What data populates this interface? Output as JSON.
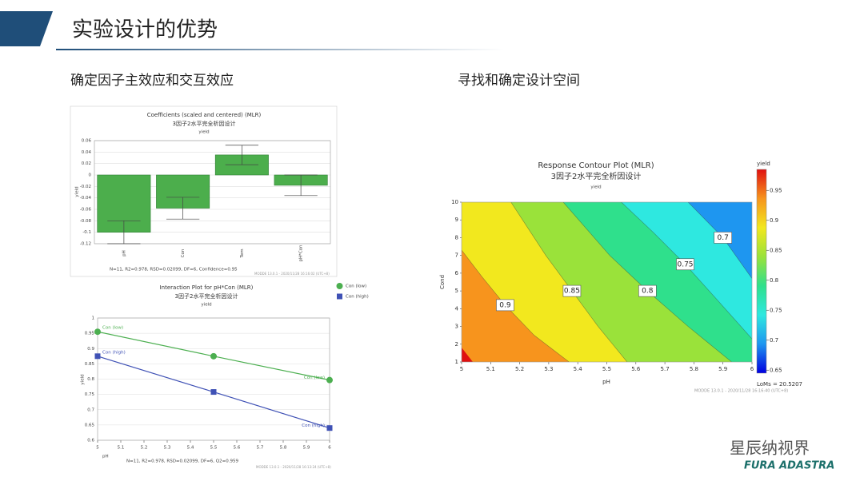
{
  "slide": {
    "title": "实验设计的优势",
    "left_heading": "确定因子主效应和交互效应",
    "right_heading": "寻找和确定设计空间",
    "brand": "星辰纳视界",
    "logo": "FURA ADASTRA"
  },
  "chart_data": [
    {
      "type": "bar",
      "title": "Coefficients (scaled and centered) (MLR)",
      "subtitle": "3因子2水平完全析因设计",
      "response": "yield",
      "y_label": "yield",
      "categories": [
        "pH",
        "Con",
        "Tem",
        "pH*Con"
      ],
      "values": [
        -0.1,
        -0.058,
        0.035,
        -0.018
      ],
      "errors": [
        0.02,
        0.019,
        0.017,
        0.018
      ],
      "color": "#4cae4c",
      "ylim": [
        -0.12,
        0.06
      ],
      "yticks": [
        -0.12,
        -0.1,
        -0.08,
        -0.06,
        -0.04,
        -0.02,
        0,
        0.02,
        0.04,
        0.06
      ],
      "grid": true,
      "footnote": "N=11, R2=0.978, RSD=0.02099, DF=6, Confidence=0.95",
      "software": "MODDE 13.0.1 - 2020/11/28 16:16:02 (UTC+8)"
    },
    {
      "type": "line",
      "title": "Interaction Plot for pH*Con (MLR)",
      "subtitle": "3因子2水平完全析因设计",
      "response": "yield",
      "x_label": "pH",
      "y_label": "yield",
      "x": [
        5,
        5.5,
        6
      ],
      "series": [
        {
          "name": "Con (low)",
          "color": "#4caf50",
          "marker": "circle",
          "values": [
            0.955,
            0.875,
            0.797
          ]
        },
        {
          "name": "Con (high)",
          "color": "#3f51b5",
          "marker": "square",
          "values": [
            0.875,
            0.758,
            0.64
          ]
        }
      ],
      "xlim": [
        5,
        6
      ],
      "xticks": [
        5,
        5.1,
        5.2,
        5.3,
        5.4,
        5.5,
        5.6,
        5.7,
        5.8,
        5.9,
        6
      ],
      "ylim": [
        0.6,
        1
      ],
      "yticks": [
        0.6,
        0.65,
        0.7,
        0.75,
        0.8,
        0.85,
        0.9,
        0.95,
        1
      ],
      "grid": true,
      "legend": "right",
      "footnote": "N=11, R2=0.978, RSD=0.02099, DF=6, Q2=0.959",
      "software": "MODDE 13.0.1 - 2020/11/28 16:13:24 (UTC+8)"
    },
    {
      "type": "contour",
      "title": "Response Contour Plot (MLR)",
      "subtitle": "3因子2水平完全析因设计",
      "response": "yield",
      "x_label": "pH",
      "y_label": "Cond",
      "xlim": [
        5,
        6
      ],
      "xticks": [
        5,
        5.1,
        5.2,
        5.3,
        5.4,
        5.5,
        5.6,
        5.7,
        5.8,
        5.9,
        6
      ],
      "ylim": [
        1,
        10
      ],
      "yticks": [
        1,
        2,
        3,
        4,
        5,
        6,
        7,
        8,
        9,
        10
      ],
      "base_color": "#f7941d",
      "levels": [
        {
          "value": 0.9,
          "color": "#f2e81e",
          "x": [
            5.37,
            5.25,
            5.15,
            5.07,
            5
          ],
          "y": [
            1,
            2.5,
            4.2,
            5.8,
            7.3
          ]
        },
        {
          "value": 0.85,
          "color": "#9ae23a",
          "x": [
            5.57,
            5.47,
            5.38,
            5.29,
            5.17
          ],
          "y": [
            1,
            3,
            5,
            7,
            10
          ]
        },
        {
          "value": 0.8,
          "color": "#2fe08c",
          "x": [
            5.93,
            5.78,
            5.64,
            5.51,
            5.35
          ],
          "y": [
            1,
            3,
            5,
            7,
            10
          ]
        },
        {
          "value": 0.75,
          "color": "#2ee8e0",
          "x": [
            6,
            5.88,
            5.77,
            5.66,
            5.55
          ],
          "y": [
            2.3,
            4.5,
            6.5,
            8.3,
            10
          ]
        },
        {
          "value": 0.7,
          "color": "#1e96f0",
          "x": [
            6,
            5.9,
            5.78
          ],
          "y": [
            5.7,
            8,
            10
          ]
        }
      ],
      "colorbar_title": "yield",
      "colorbar_lim": [
        0.645,
        0.985
      ],
      "colorbar_ticks": [
        0.65,
        0.7,
        0.75,
        0.8,
        0.85,
        0.9,
        0.95
      ],
      "colorscale": [
        "#0000e0",
        "#1e96f0",
        "#2ee8e0",
        "#2fe08c",
        "#9ae23a",
        "#f2e81e",
        "#f7941d",
        "#e01010"
      ],
      "note": "LoMs = 20.5207",
      "software": "MODDE 13.0.1 - 2020/11/28 16:16:40 (UTC+8)"
    }
  ]
}
